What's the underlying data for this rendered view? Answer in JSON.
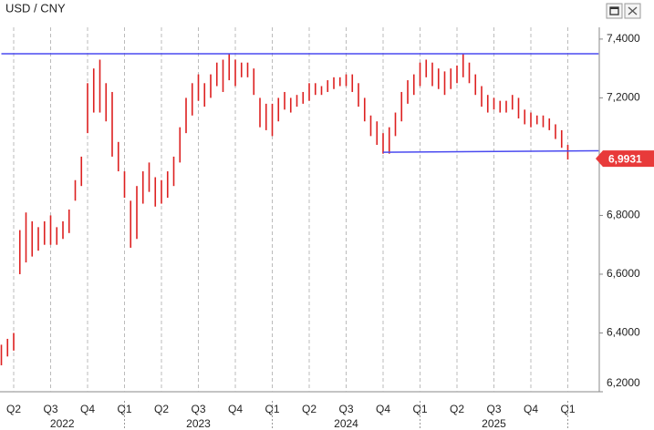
{
  "chart_data": {
    "type": "hilo",
    "title": "USD / CNY",
    "categories": [
      null,
      null,
      "Q2",
      null,
      null,
      null,
      null,
      null,
      "Q3",
      null,
      null,
      null,
      null,
      null,
      "Q4",
      null,
      null,
      null,
      null,
      null,
      "Q1",
      null,
      null,
      null,
      null,
      null,
      "Q2",
      null,
      null,
      null,
      null,
      null,
      "Q3",
      null,
      null,
      null,
      null,
      null,
      "Q4",
      null,
      null,
      null,
      null,
      null,
      "Q1",
      null,
      null,
      null,
      null,
      null,
      "Q2",
      null,
      null,
      null,
      null,
      null,
      "Q3",
      null,
      null,
      null,
      null,
      null,
      "Q4",
      null,
      null,
      null,
      null,
      null,
      "Q1",
      null,
      null,
      null,
      null,
      null,
      "Q2",
      null,
      null,
      null,
      null,
      null,
      "Q3",
      null,
      null,
      null,
      null,
      null,
      "Q4",
      null,
      null,
      null,
      null,
      null,
      "Q1"
    ],
    "years": [
      "2022",
      "2023",
      "2024",
      "2025"
    ],
    "color": "#dd2020",
    "high": [
      6.36,
      6.38,
      6.4,
      6.75,
      6.81,
      6.78,
      6.76,
      6.78,
      6.8,
      6.76,
      6.78,
      6.82,
      6.92,
      7.0,
      7.25,
      7.3,
      7.33,
      7.25,
      7.22,
      7.05,
      6.95,
      6.85,
      6.9,
      6.95,
      6.98,
      6.93,
      6.92,
      6.95,
      7.0,
      7.1,
      7.2,
      7.25,
      7.28,
      7.25,
      7.28,
      7.32,
      7.33,
      7.35,
      7.33,
      7.32,
      7.32,
      7.3,
      7.2,
      7.18,
      7.18,
      7.2,
      7.22,
      7.2,
      7.21,
      7.22,
      7.25,
      7.25,
      7.24,
      7.26,
      7.27,
      7.27,
      7.28,
      7.28,
      7.25,
      7.2,
      7.14,
      7.12,
      7.08,
      7.1,
      7.15,
      7.22,
      7.26,
      7.28,
      7.32,
      7.33,
      7.32,
      7.3,
      7.29,
      7.3,
      7.31,
      7.35,
      7.32,
      7.28,
      7.24,
      7.21,
      7.2,
      7.19,
      7.19,
      7.21,
      7.2,
      7.16,
      7.15,
      7.14,
      7.14,
      7.13,
      7.11,
      7.09,
      7.04
    ],
    "low": [
      6.29,
      6.32,
      6.34,
      6.6,
      6.64,
      6.66,
      6.68,
      6.7,
      6.7,
      6.7,
      6.72,
      6.74,
      6.85,
      6.9,
      7.08,
      7.15,
      7.15,
      7.12,
      7.0,
      6.95,
      6.86,
      6.69,
      6.72,
      6.84,
      6.88,
      6.83,
      6.84,
      6.86,
      6.9,
      6.98,
      7.08,
      7.14,
      7.19,
      7.17,
      7.2,
      7.24,
      7.22,
      7.26,
      7.24,
      7.27,
      7.27,
      7.21,
      7.1,
      7.09,
      7.07,
      7.12,
      7.16,
      7.15,
      7.17,
      7.18,
      7.19,
      7.21,
      7.21,
      7.22,
      7.23,
      7.24,
      7.24,
      7.22,
      7.17,
      7.12,
      7.07,
      7.04,
      7.01,
      7.01,
      7.07,
      7.12,
      7.18,
      7.21,
      7.24,
      7.27,
      7.24,
      7.23,
      7.21,
      7.23,
      7.25,
      7.27,
      7.25,
      7.21,
      7.17,
      7.15,
      7.16,
      7.15,
      7.15,
      7.16,
      7.13,
      7.11,
      7.1,
      7.11,
      7.1,
      7.09,
      7.06,
      7.03,
      6.99
    ],
    "ylim": [
      6.2,
      7.44
    ],
    "yticks": [
      {
        "value": 7.4,
        "label": "7,4000"
      },
      {
        "value": 7.2,
        "label": "7,2000"
      },
      {
        "value": 6.8,
        "label": "6,8000"
      },
      {
        "value": 6.6,
        "label": "6,6000"
      },
      {
        "value": 6.4,
        "label": "6,4000"
      },
      {
        "value": 6.2,
        "label": "6,2000"
      }
    ],
    "lines": [
      {
        "color": "#4a4af0",
        "x": [
          0,
          97
        ],
        "values": [
          7.35,
          7.35
        ]
      },
      {
        "color": "#4a4af0",
        "x": [
          62,
          97
        ],
        "values": [
          7.015,
          7.02
        ]
      }
    ],
    "last_price": {
      "value": 6.9931,
      "label": "6,9931",
      "color": "#e83a3a"
    },
    "grid": true
  }
}
